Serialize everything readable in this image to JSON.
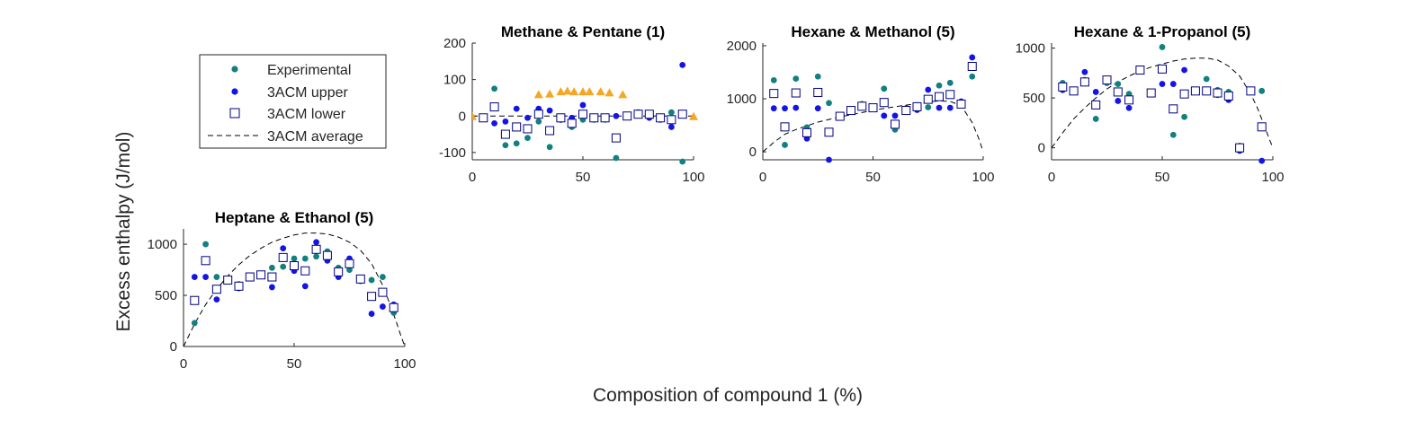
{
  "figure": {
    "xlabel": "Composition of compound 1 (%)",
    "ylabel": "Excess enthalpy (J/mol)"
  },
  "legend": {
    "placement": "left",
    "items": [
      {
        "label": "Experimental",
        "marker": "dot",
        "color": "#12807e"
      },
      {
        "label": "3ACM upper",
        "marker": "dot",
        "color": "#1414e6"
      },
      {
        "label": "3ACM lower",
        "marker": "square",
        "color": "#000080"
      },
      {
        "label": "3ACM average",
        "marker": "dash",
        "color": "#000000"
      }
    ]
  },
  "colors": {
    "experimental": "#12807e",
    "upper": "#1414e6",
    "lower": "#000080",
    "average": "#000000",
    "extra": "#f5a623"
  },
  "chart_data": [
    {
      "type": "scatter",
      "title": "Methane & Pentane (1)",
      "xlim": [
        0,
        100
      ],
      "ylim": [
        -120,
        200
      ],
      "xticks": [
        "0",
        "50",
        "100"
      ],
      "yticks": [
        "-100",
        "0",
        "100",
        "200"
      ],
      "series": [
        {
          "key": "experimental",
          "x": [
            5,
            10,
            15,
            20,
            25,
            30,
            35,
            40,
            45,
            50,
            55,
            60,
            65,
            70,
            75,
            80,
            85,
            90,
            95
          ],
          "y": [
            -5,
            75,
            -80,
            -75,
            -60,
            -15,
            -85,
            -10,
            -30,
            -10,
            -10,
            -10,
            -115,
            0,
            5,
            5,
            -5,
            10,
            -125
          ]
        },
        {
          "key": "upper",
          "x": [
            5,
            10,
            15,
            20,
            25,
            30,
            35,
            40,
            45,
            50,
            55,
            60,
            65,
            70,
            75,
            80,
            85,
            90,
            95
          ],
          "y": [
            -5,
            -20,
            -15,
            20,
            -5,
            20,
            15,
            -10,
            -5,
            30,
            -5,
            -5,
            0,
            0,
            10,
            -5,
            -10,
            -30,
            140
          ]
        },
        {
          "key": "lower",
          "x": [
            5,
            10,
            15,
            20,
            25,
            30,
            35,
            40,
            45,
            50,
            55,
            60,
            65,
            70,
            75,
            80,
            85,
            90,
            95
          ],
          "y": [
            -5,
            25,
            -50,
            -30,
            -35,
            5,
            -40,
            -5,
            -20,
            5,
            -5,
            -5,
            -60,
            0,
            5,
            5,
            -5,
            -10,
            5
          ]
        },
        {
          "key": "extra",
          "x": [
            0,
            30,
            35,
            40,
            43,
            46,
            50,
            53,
            58,
            62,
            68,
            100
          ],
          "y": [
            0,
            60,
            62,
            68,
            70,
            68,
            68,
            68,
            68,
            65,
            60,
            0
          ]
        },
        {
          "key": "average",
          "x": [
            0,
            10,
            20,
            30,
            40,
            50,
            60,
            70,
            80,
            90,
            100
          ],
          "y": [
            0,
            0,
            0,
            0,
            0,
            0,
            0,
            0,
            0,
            0,
            0
          ]
        }
      ]
    },
    {
      "type": "scatter",
      "title": "Hexane & Methanol (5)",
      "xlim": [
        0,
        100
      ],
      "ylim": [
        -150,
        2050
      ],
      "xticks": [
        "0",
        "50",
        "100"
      ],
      "yticks": [
        "0",
        "1000",
        "2000"
      ],
      "series": [
        {
          "key": "experimental",
          "x": [
            5,
            10,
            15,
            20,
            25,
            30,
            35,
            40,
            45,
            50,
            55,
            60,
            65,
            70,
            75,
            80,
            85,
            90,
            95
          ],
          "y": [
            1350,
            130,
            1380,
            460,
            1420,
            920,
            670,
            790,
            900,
            830,
            1190,
            420,
            790,
            880,
            840,
            1250,
            1300,
            880,
            1420
          ]
        },
        {
          "key": "upper",
          "x": [
            5,
            10,
            15,
            20,
            25,
            30,
            35,
            40,
            45,
            50,
            55,
            60,
            65,
            70,
            75,
            80,
            85,
            90,
            95
          ],
          "y": [
            820,
            820,
            830,
            250,
            820,
            -150,
            670,
            780,
            840,
            840,
            680,
            680,
            820,
            790,
            1170,
            830,
            830,
            950,
            1780
          ]
        },
        {
          "key": "lower",
          "x": [
            5,
            10,
            15,
            20,
            25,
            30,
            35,
            40,
            45,
            50,
            55,
            60,
            65,
            70,
            75,
            80,
            85,
            90,
            95
          ],
          "y": [
            1100,
            470,
            1110,
            360,
            1120,
            370,
            670,
            780,
            860,
            830,
            930,
            520,
            780,
            850,
            990,
            1040,
            1080,
            900,
            1610
          ]
        },
        {
          "key": "average",
          "x": [
            0,
            5,
            10,
            15,
            20,
            25,
            30,
            35,
            40,
            45,
            50,
            55,
            60,
            65,
            70,
            75,
            80,
            85,
            90,
            95,
            98,
            100
          ],
          "y": [
            0,
            180,
            330,
            420,
            490,
            560,
            610,
            660,
            700,
            740,
            780,
            820,
            850,
            880,
            910,
            940,
            960,
            950,
            870,
            550,
            250,
            0
          ]
        }
      ]
    },
    {
      "type": "scatter",
      "title": "Hexane & 1-Propanol (5)",
      "xlim": [
        0,
        100
      ],
      "ylim": [
        -120,
        1050
      ],
      "xticks": [
        "0",
        "50",
        "100"
      ],
      "yticks": [
        "0",
        "500",
        "1000"
      ],
      "series": [
        {
          "key": "experimental",
          "x": [
            5,
            10,
            15,
            20,
            25,
            30,
            35,
            40,
            45,
            50,
            55,
            60,
            65,
            70,
            75,
            80,
            85,
            90,
            95
          ],
          "y": [
            650,
            580,
            680,
            290,
            650,
            640,
            540,
            780,
            540,
            1010,
            130,
            310,
            580,
            690,
            580,
            560,
            20,
            570,
            570
          ]
        },
        {
          "key": "upper",
          "x": [
            5,
            10,
            15,
            20,
            25,
            30,
            35,
            40,
            45,
            50,
            55,
            60,
            65,
            70,
            75,
            80,
            85,
            90,
            95
          ],
          "y": [
            580,
            560,
            760,
            560,
            690,
            470,
            400,
            790,
            540,
            640,
            640,
            780,
            570,
            580,
            530,
            480,
            -30,
            570,
            -130
          ]
        },
        {
          "key": "lower",
          "x": [
            5,
            10,
            15,
            20,
            25,
            30,
            35,
            40,
            45,
            50,
            55,
            60,
            65,
            70,
            75,
            80,
            85,
            90,
            95
          ],
          "y": [
            610,
            570,
            660,
            430,
            680,
            560,
            480,
            780,
            550,
            790,
            390,
            540,
            570,
            570,
            550,
            520,
            0,
            570,
            210
          ]
        },
        {
          "key": "average",
          "x": [
            0,
            5,
            10,
            15,
            20,
            25,
            30,
            35,
            40,
            45,
            50,
            55,
            60,
            65,
            70,
            75,
            80,
            85,
            90,
            93,
            96,
            98,
            100
          ],
          "y": [
            0,
            150,
            290,
            400,
            500,
            590,
            660,
            720,
            770,
            810,
            840,
            870,
            890,
            900,
            900,
            880,
            820,
            720,
            540,
            400,
            230,
            110,
            0
          ]
        }
      ]
    },
    {
      "type": "scatter",
      "title": "Heptane & Ethanol (5)",
      "xlim": [
        0,
        100
      ],
      "ylim": [
        0,
        1150
      ],
      "xticks": [
        "0",
        "50",
        "100"
      ],
      "yticks": [
        "0",
        "500",
        "1000"
      ],
      "series": [
        {
          "key": "experimental",
          "x": [
            5,
            10,
            15,
            20,
            25,
            30,
            35,
            40,
            45,
            50,
            55,
            60,
            65,
            70,
            75,
            80,
            85,
            90,
            95
          ],
          "y": [
            230,
            1000,
            680,
            640,
            610,
            680,
            690,
            770,
            780,
            860,
            860,
            880,
            930,
            770,
            750,
            640,
            650,
            680,
            330
          ]
        },
        {
          "key": "upper",
          "x": [
            5,
            10,
            15,
            20,
            25,
            30,
            35,
            40,
            45,
            50,
            55,
            60,
            65,
            70,
            75,
            80,
            85,
            90,
            95
          ],
          "y": [
            680,
            680,
            460,
            660,
            570,
            680,
            710,
            580,
            960,
            740,
            590,
            1020,
            840,
            680,
            860,
            670,
            320,
            390,
            410
          ]
        },
        {
          "key": "lower",
          "x": [
            5,
            10,
            15,
            20,
            25,
            30,
            35,
            40,
            45,
            50,
            55,
            60,
            65,
            70,
            75,
            80,
            85,
            90,
            95
          ],
          "y": [
            450,
            840,
            560,
            650,
            590,
            680,
            700,
            680,
            870,
            790,
            740,
            950,
            890,
            730,
            810,
            660,
            490,
            530,
            380
          ]
        },
        {
          "key": "average",
          "x": [
            0,
            5,
            10,
            15,
            20,
            25,
            30,
            35,
            40,
            45,
            50,
            55,
            60,
            65,
            70,
            75,
            80,
            85,
            90,
            93,
            96,
            98,
            100
          ],
          "y": [
            0,
            220,
            410,
            560,
            690,
            800,
            890,
            960,
            1020,
            1060,
            1090,
            1110,
            1110,
            1100,
            1070,
            1020,
            940,
            810,
            600,
            430,
            250,
            120,
            0
          ]
        }
      ]
    }
  ]
}
